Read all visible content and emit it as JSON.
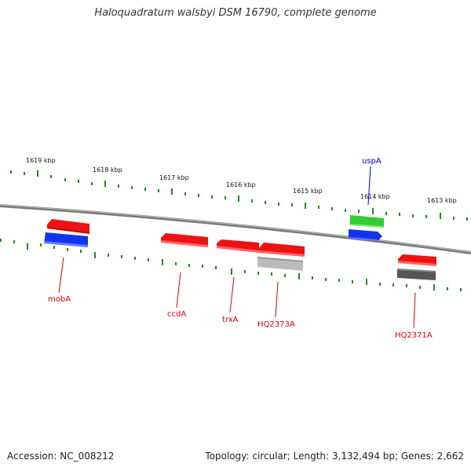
{
  "title": "Haloquadratum walsbyi DSM 16790, complete genome",
  "footer": {
    "accession": "Accession: NC_008212",
    "stats": "Topology: circular; Length: 3,132,494 bp; Genes: 2,662"
  },
  "ruler_labels": [
    "1619 kbp",
    "1618 kbp",
    "1617 kbp",
    "1616 kbp",
    "1615 kbp",
    "1614 kbp",
    "1613 kbp"
  ],
  "colors": {
    "backbone": "#888888",
    "ticks": "#1f8a1f",
    "red_gene": "#ee1111",
    "blue_gene": "#1133ee",
    "green_gene": "#33cc33",
    "light_gray_gene": "#bbbbbb",
    "dark_gray_gene": "#555555",
    "red_label": "#dd0000",
    "blue_label": "#0000cc"
  },
  "gene_labels": [
    {
      "name": "mobA",
      "color": "red"
    },
    {
      "name": "ccdA",
      "color": "red"
    },
    {
      "name": "trxA",
      "color": "red"
    },
    {
      "name": "HQ2373A",
      "color": "red"
    },
    {
      "name": "uspA",
      "color": "blue"
    },
    {
      "name": "HQ2371A",
      "color": "red"
    }
  ]
}
